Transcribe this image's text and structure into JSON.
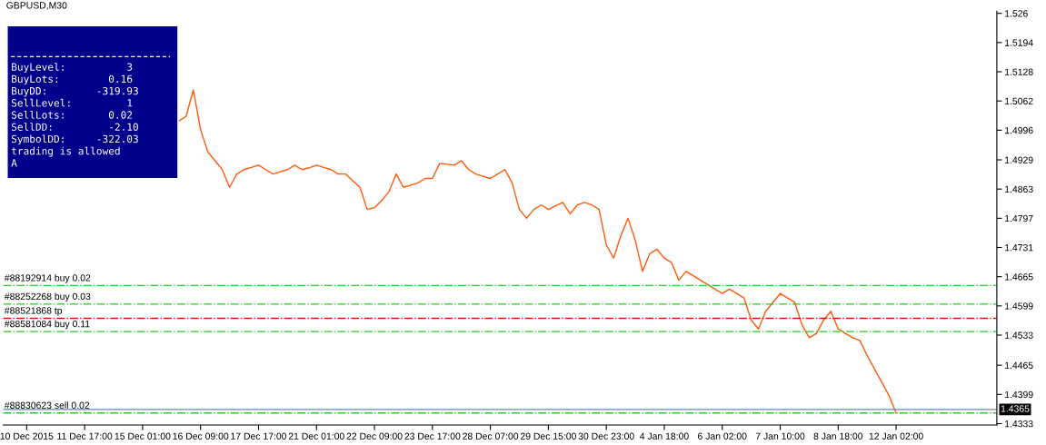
{
  "chart_data": {
    "type": "line",
    "title": "GBPUSD,M30",
    "categories": [
      null,
      null,
      null,
      null,
      "10 Dec 2015",
      null,
      null,
      null,
      null,
      null,
      null,
      null,
      "11 Dec 17:00",
      null,
      null,
      null,
      null,
      null,
      null,
      null,
      "15 Dec 01:00",
      null,
      null,
      null,
      null,
      null,
      null,
      null,
      "16 Dec 09:00",
      null,
      null,
      null,
      null,
      null,
      null,
      null,
      "17 Dec 17:00",
      null,
      null,
      null,
      null,
      null,
      null,
      null,
      "21 Dec 01:00",
      null,
      null,
      null,
      null,
      null,
      null,
      null,
      "22 Dec 09:00",
      null,
      null,
      null,
      null,
      null,
      null,
      null,
      "23 Dec 17:00",
      null,
      null,
      null,
      null,
      null,
      null,
      null,
      "28 Dec 07:00",
      null,
      null,
      null,
      null,
      null,
      null,
      null,
      "29 Dec 15:00",
      null,
      null,
      null,
      null,
      null,
      null,
      null,
      "30 Dec 23:00",
      null,
      null,
      null,
      null,
      null,
      null,
      null,
      "4 Jan 18:00",
      null,
      null,
      null,
      null,
      null,
      null,
      null,
      "6 Jan 02:00",
      null,
      null,
      null,
      null,
      null,
      null,
      null,
      "7 Jan 10:00",
      null,
      null,
      null,
      null,
      null,
      null,
      null,
      "8 Jan 18:00",
      null,
      null,
      null,
      null,
      null,
      null,
      null,
      "12 Jan 02:00",
      null,
      null,
      null,
      null,
      null,
      null,
      null,
      null,
      null,
      null,
      null,
      null
    ],
    "series": [
      {
        "color": "#ff5a0a",
        "values": [
          null,
          null,
          null,
          null,
          null,
          null,
          null,
          null,
          null,
          null,
          null,
          null,
          null,
          null,
          null,
          null,
          null,
          null,
          null,
          null,
          null,
          null,
          null,
          null,
          null,
          1.5017,
          1.5027,
          1.5087,
          1.4997,
          1.4947,
          1.4927,
          1.4907,
          1.4867,
          1.4897,
          1.4907,
          1.4912,
          1.4917,
          1.4907,
          1.4897,
          1.4902,
          1.4907,
          1.4917,
          1.4907,
          1.4911,
          1.4917,
          1.4912,
          1.4907,
          1.4897,
          1.4897,
          1.4882,
          1.4867,
          1.4817,
          1.4821,
          1.4837,
          1.4857,
          1.4897,
          1.4867,
          1.4872,
          1.4877,
          1.4887,
          1.4887,
          1.4921,
          1.4919,
          1.4917,
          1.4927,
          1.4907,
          1.4897,
          1.4892,
          1.4887,
          1.4897,
          1.4907,
          1.4877,
          1.4817,
          1.4797,
          1.4817,
          1.4827,
          1.4817,
          1.4825,
          1.4833,
          1.4807,
          1.4827,
          1.4833,
          1.4827,
          1.4817,
          1.4737,
          1.4707,
          1.4757,
          1.4797,
          1.4747,
          1.4677,
          1.4717,
          1.4727,
          1.4707,
          1.4697,
          1.4657,
          1.4677,
          1.4667,
          1.4657,
          1.4647,
          1.4637,
          1.4627,
          1.4637,
          1.4627,
          1.4617,
          1.4567,
          1.4547,
          1.4587,
          1.4607,
          1.4627,
          1.4617,
          1.4607,
          1.4557,
          1.4527,
          1.4537,
          1.4567,
          1.4587,
          1.4547,
          1.4537,
          1.4527,
          1.4521,
          1.4487,
          1.4457,
          1.4427,
          1.4397,
          1.4357,
          null,
          null,
          null,
          null,
          null,
          null,
          null,
          null,
          null,
          null,
          null,
          null
        ]
      }
    ],
    "ylim": [
      1.433,
      1.5265
    ],
    "yticks": [
      1.526,
      1.5194,
      1.5128,
      1.5062,
      1.4996,
      1.4929,
      1.4863,
      1.4797,
      1.4731,
      1.4665,
      1.4599,
      1.4533,
      1.4465,
      1.4399,
      1.4333
    ],
    "ref_lines": [
      {
        "axis": "y",
        "value": 1.4645,
        "label": "#88192914 buy 0.02",
        "color": "#22cc22",
        "line_style": "dashdot"
      },
      {
        "axis": "y",
        "value": 1.4603,
        "label": "#88252268 buy 0.03",
        "color": "#22cc22",
        "line_style": "dashdot"
      },
      {
        "axis": "y",
        "value": 1.4571,
        "label": "#88521868 tp",
        "color": "#dd1111",
        "line_style": "dashdot"
      },
      {
        "axis": "y",
        "value": 1.4541,
        "label": "#88581084 buy 0.11",
        "color": "#22cc22",
        "line_style": "dashdot"
      },
      {
        "axis": "y",
        "value": 1.4365,
        "label": "1.4365",
        "color": "#778899",
        "line_style": "solid"
      },
      {
        "axis": "y",
        "value": 1.4357,
        "label": "#88830623 sell 0.02",
        "color": "#22cc22",
        "line_style": "dashdot"
      }
    ],
    "annotations": [
      "BuyLevel:          3",
      "BuyLots:        0.16",
      "BuyDD:        -319.93",
      "SellLevel:         1",
      "SellLots:       0.02",
      "SellDD:         -2.10",
      "SymbolDD:     -322.03",
      "trading is allowed",
      "A"
    ],
    "grid": false,
    "legend": false,
    "marker": "none",
    "line_style": "solid"
  }
}
